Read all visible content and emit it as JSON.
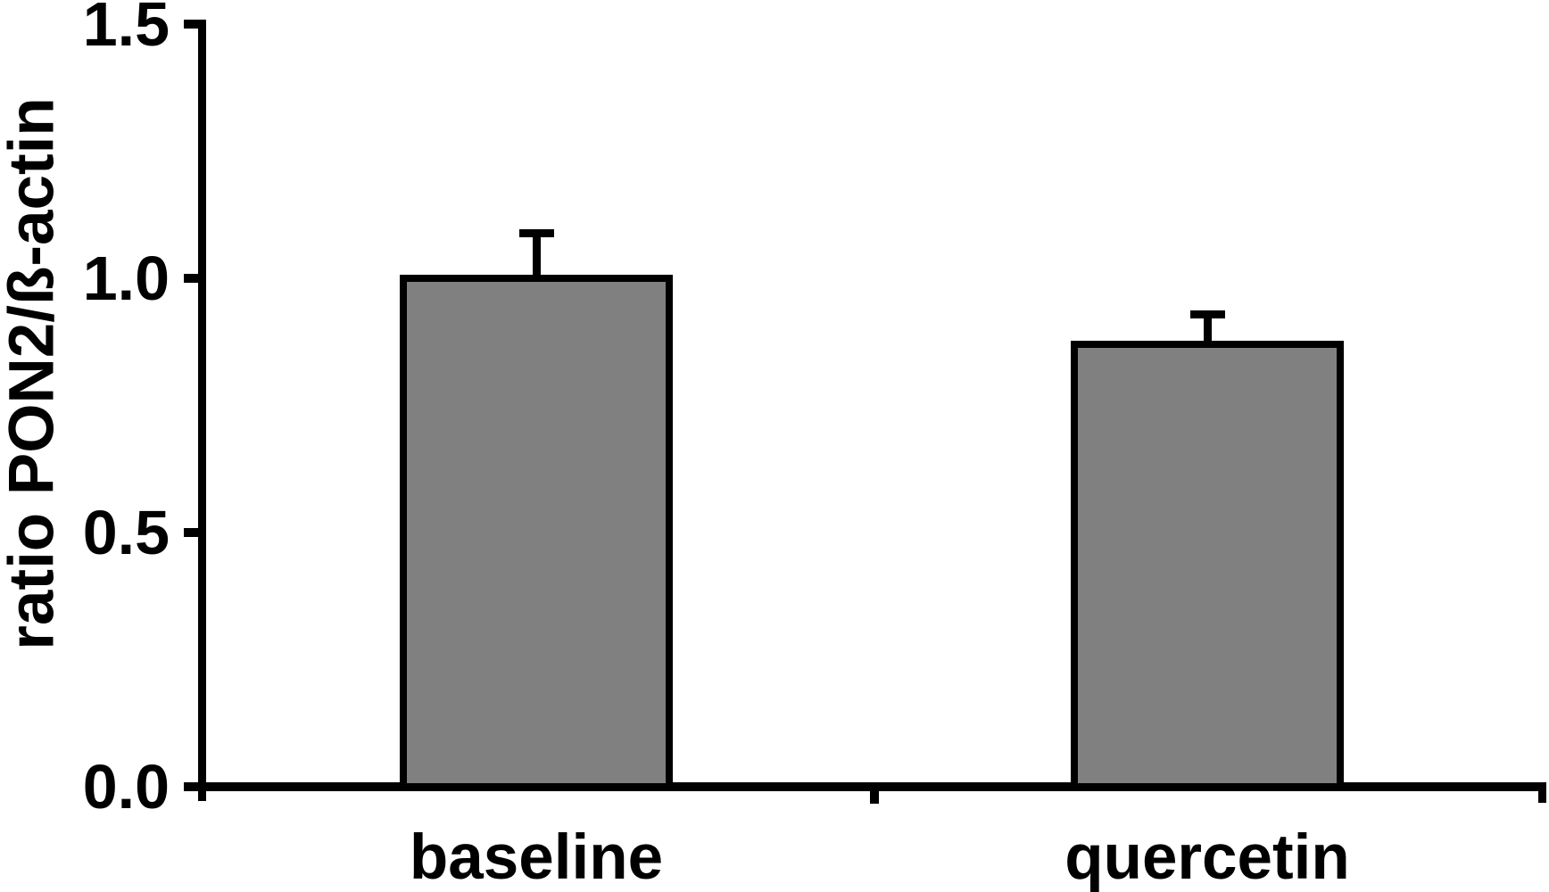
{
  "chart_data": {
    "type": "bar",
    "title": "",
    "xlabel": "",
    "ylabel": "ratio PON2/ß-actin",
    "categories": [
      "baseline",
      "quercetin"
    ],
    "values": [
      1.0,
      0.87
    ],
    "errors": [
      0.09,
      0.06
    ],
    "error_bars": "upper only, cap style T",
    "yticks": [
      0.0,
      0.5,
      1.0,
      1.5
    ],
    "ytick_labels": [
      "0.0",
      "0.5",
      "1.0",
      "1.5"
    ],
    "ylim": [
      0.0,
      1.5
    ],
    "grid": false,
    "legend": null,
    "colors": {
      "bar_fill": "#808080",
      "bar_border": "#000000",
      "axis": "#000000",
      "text": "#000000",
      "background": "#ffffff"
    }
  }
}
